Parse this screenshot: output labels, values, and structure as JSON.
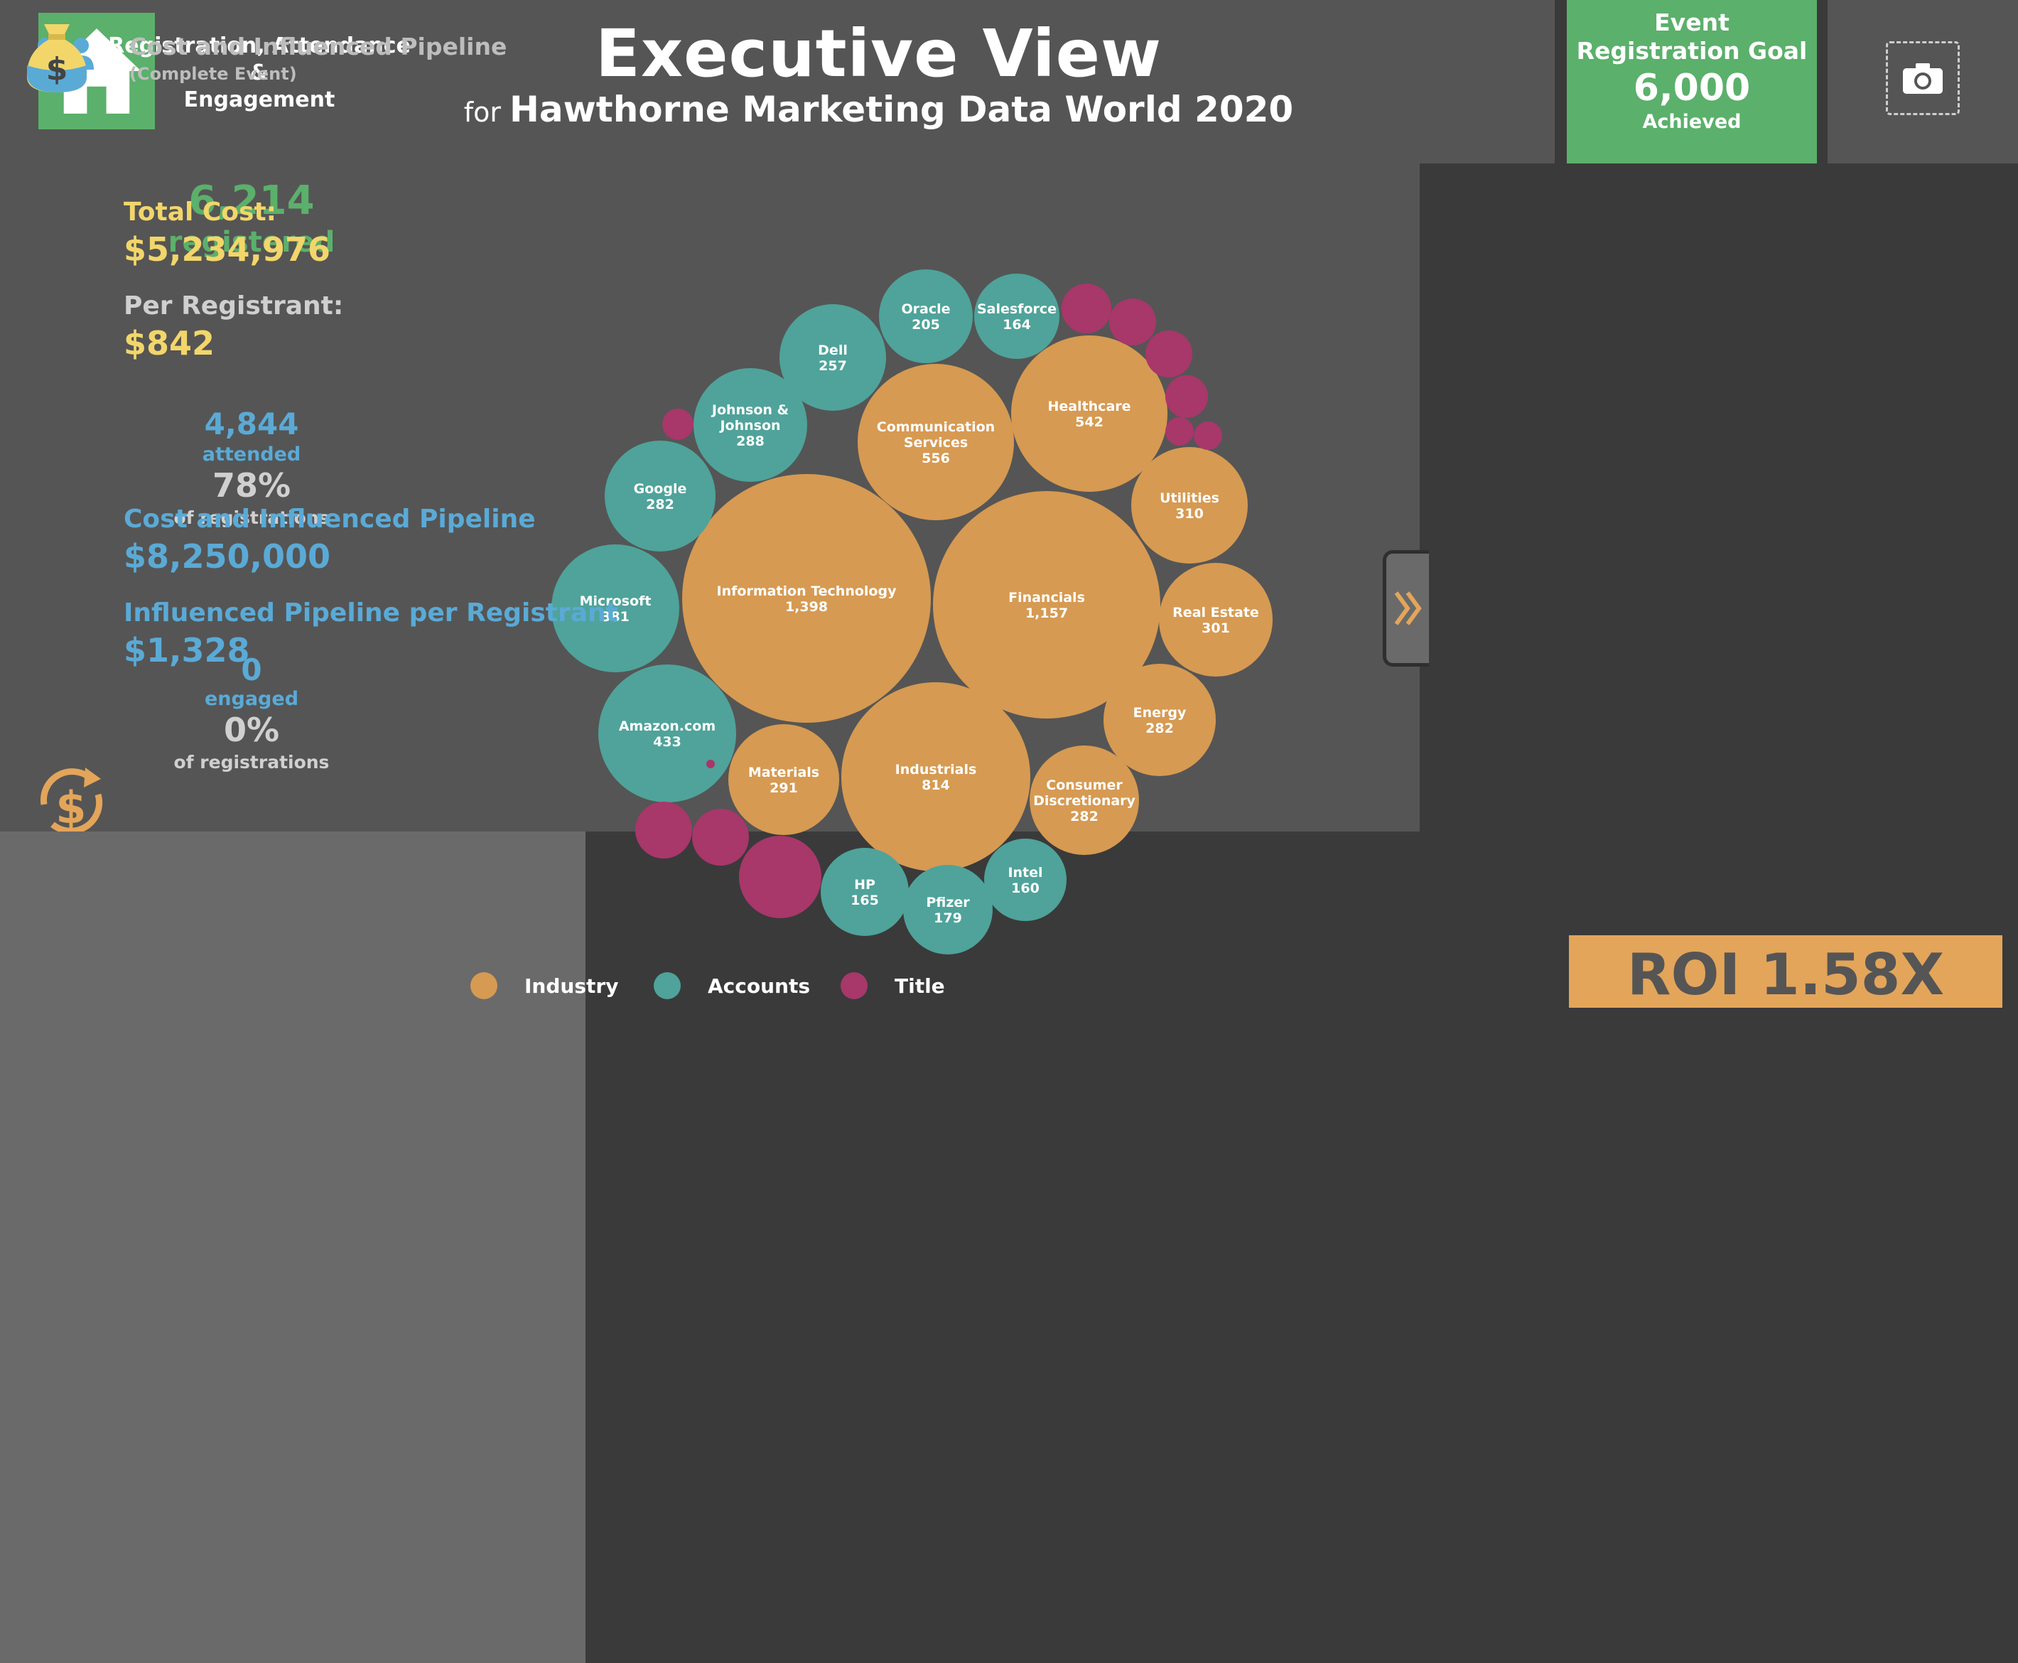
{
  "header": {
    "title": "Executive View",
    "subtitle_prefix": "for",
    "subtitle": "Hawthorne Marketing Data World 2020",
    "goal": {
      "line1": "Event",
      "line2": "Registration Goal",
      "value": "6,000",
      "status": "Achieved"
    },
    "home_icon": "home-icon",
    "camera_icon": "camera-icon"
  },
  "left": {
    "heading_line1": "Registration, Attendance &",
    "heading_line2": "Engagement",
    "registered_value": "6,214",
    "registered_label": "registered",
    "attended_value": "4,844",
    "attended_label": "attended",
    "attended_pct": "78%",
    "attended_pct_label": "of registrations",
    "engaged_value": "0",
    "engaged_label": "engaged",
    "engaged_pct": "0%",
    "engaged_pct_label": "of registrations"
  },
  "legend": [
    "Industry",
    "Accounts",
    "Title"
  ],
  "colors": {
    "industry": "#d69a52",
    "accounts": "#4fa39a",
    "title": "#a8376a",
    "green": "#5bb06b",
    "yellow": "#f2d66a",
    "blue": "#5aaad6"
  },
  "chart_data": {
    "type": "bubble",
    "bubbles": [
      {
        "name": "Information Technology",
        "value": "1,398",
        "group": "Industry"
      },
      {
        "name": "Financials",
        "value": "1,157",
        "group": "Industry"
      },
      {
        "name": "Industrials",
        "value": "814",
        "group": "Industry"
      },
      {
        "name": "Communication|Services",
        "value": "556",
        "group": "Industry"
      },
      {
        "name": "Healthcare",
        "value": "542",
        "group": "Industry"
      },
      {
        "name": "Utilities",
        "value": "310",
        "group": "Industry"
      },
      {
        "name": "Real Estate",
        "value": "301",
        "group": "Industry"
      },
      {
        "name": "Materials",
        "value": "291",
        "group": "Industry"
      },
      {
        "name": "Energy",
        "value": "282",
        "group": "Industry"
      },
      {
        "name": "Consumer|Discretionary",
        "value": "282",
        "group": "Industry"
      },
      {
        "name": "Amazon.com",
        "value": "433",
        "group": "Accounts"
      },
      {
        "name": "Microsoft",
        "value": "381",
        "group": "Accounts"
      },
      {
        "name": "Johnson &|Johnson",
        "value": "288",
        "group": "Accounts"
      },
      {
        "name": "Google",
        "value": "282",
        "group": "Accounts"
      },
      {
        "name": "Dell",
        "value": "257",
        "group": "Accounts"
      },
      {
        "name": "Oracle",
        "value": "205",
        "group": "Accounts"
      },
      {
        "name": "Pfizer",
        "value": "179",
        "group": "Accounts"
      },
      {
        "name": "HP",
        "value": "165",
        "group": "Accounts"
      },
      {
        "name": "Salesforce",
        "value": "164",
        "group": "Accounts"
      },
      {
        "name": "Intel",
        "value": "160",
        "group": "Accounts"
      },
      {
        "name": "",
        "value": "",
        "group": "Title"
      },
      {
        "name": "",
        "value": "",
        "group": "Title"
      },
      {
        "name": "",
        "value": "",
        "group": "Title"
      },
      {
        "name": "",
        "value": "",
        "group": "Title"
      },
      {
        "name": "",
        "value": "",
        "group": "Title"
      },
      {
        "name": "",
        "value": "",
        "group": "Title"
      },
      {
        "name": "",
        "value": "",
        "group": "Title"
      },
      {
        "name": "",
        "value": "",
        "group": "Title"
      },
      {
        "name": "",
        "value": "",
        "group": "Title"
      },
      {
        "name": "",
        "value": "",
        "group": "Title"
      },
      {
        "name": "",
        "value": "",
        "group": "Title"
      }
    ]
  },
  "right": {
    "heading": "Cost and Influenced Pipeline",
    "heading_sub": "(Complete Event)",
    "total_cost_label": "Total Cost:",
    "total_cost_value": "$5,234,976",
    "per_registrant_label": "Per Registrant:",
    "per_registrant_value": "$842",
    "pipeline_label": "Cost and Influenced Pipeline",
    "pipeline_value": "$8,250,000",
    "pipeline_per_label": "Influenced Pipeline per Registrant",
    "pipeline_per_value": "$1,328",
    "roi": "ROI 1.58X",
    "money_bag_icon": "money-bag-icon",
    "roi_icon": "dollar-cycle-icon"
  }
}
